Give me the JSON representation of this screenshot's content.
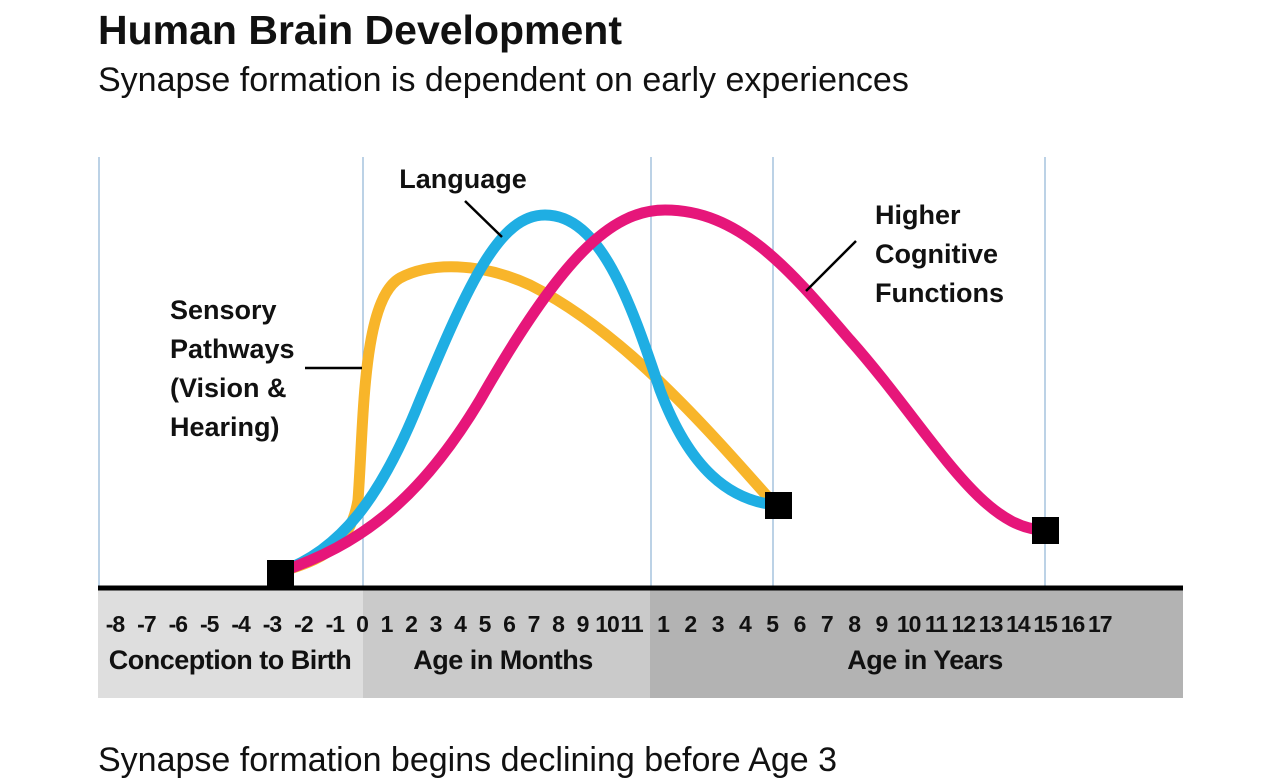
{
  "header": {
    "title": "Human Brain Development",
    "subtitle": "Synapse formation is dependent on early experiences"
  },
  "curve_labels": {
    "sensory": [
      "Sensory",
      "Pathways",
      "(Vision &",
      "Hearing)"
    ],
    "language": "Language",
    "higher": [
      "Higher",
      "Cognitive",
      "Functions"
    ]
  },
  "timeline": [
    {
      "label": "Conception to Birth",
      "ticks": [
        "-8",
        "-7",
        "-6",
        "-5",
        "-4",
        "-3",
        "-2",
        "-1"
      ]
    },
    {
      "label": "Age in Months",
      "ticks": [
        "0",
        "1",
        "2",
        "3",
        "4",
        "5",
        "6",
        "7",
        "8",
        "9",
        "10",
        "11"
      ]
    },
    {
      "label": "Age in Years",
      "ticks": [
        "1",
        "2",
        "3",
        "4",
        "5",
        "6",
        "7",
        "8",
        "9",
        "10",
        "11",
        "12",
        "13",
        "14",
        "15",
        "16",
        "17"
      ]
    }
  ],
  "footer": "Synapse formation begins declining before Age 3"
}
